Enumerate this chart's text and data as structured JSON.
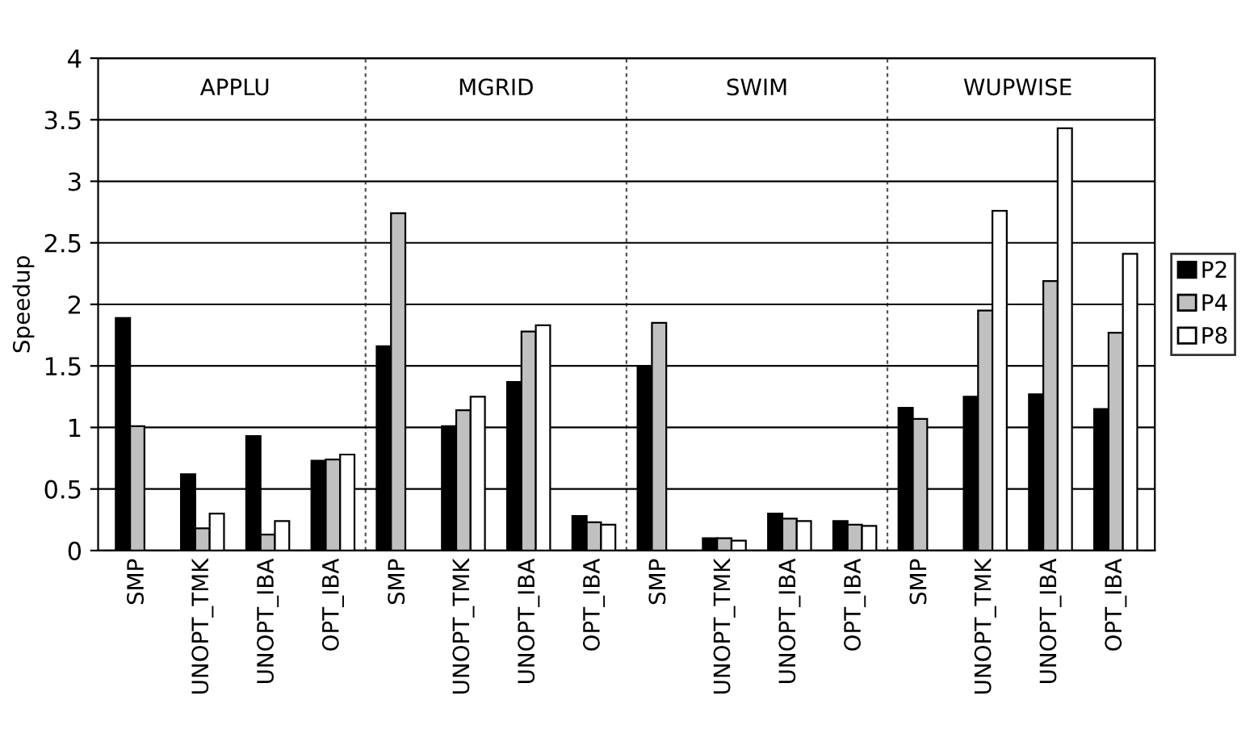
{
  "chart_data": {
    "type": "bar",
    "ylabel": "Speedup",
    "categories": [
      "SMP",
      "UNOPT_TMK",
      "UNOPT_IBA",
      "OPT_IBA",
      "SMP",
      "UNOPT_TMK",
      "UNOPT_IBA",
      "OPT_IBA",
      "SMP",
      "UNOPT_TMK",
      "UNOPT_IBA",
      "OPT_IBA",
      "SMP",
      "UNOPT_TMK",
      "UNOPT_IBA",
      "OPT_IBA"
    ],
    "series": [
      {
        "name": "P2",
        "color": "#000000",
        "values": [
          1.89,
          0.62,
          0.93,
          0.73,
          1.66,
          1.01,
          1.37,
          0.28,
          1.49,
          0.1,
          0.3,
          0.24,
          1.16,
          1.25,
          1.27,
          1.15
        ]
      },
      {
        "name": "P4",
        "color": "#c0c0c0",
        "values": [
          1.01,
          0.18,
          0.13,
          0.74,
          2.74,
          1.14,
          1.78,
          0.23,
          1.85,
          0.1,
          0.26,
          0.21,
          1.07,
          1.95,
          2.19,
          1.77
        ]
      },
      {
        "name": "P8",
        "color": "#ffffff",
        "values": [
          null,
          0.3,
          0.24,
          0.78,
          null,
          1.25,
          1.83,
          0.21,
          null,
          0.08,
          0.24,
          0.2,
          null,
          2.76,
          3.43,
          2.41
        ]
      }
    ],
    "annotations": [
      "APPLU",
      "MGRID",
      "SWIM",
      "WUPWISE"
    ],
    "ylim": [
      0,
      4
    ],
    "yticks": [
      0,
      0.5,
      1,
      1.5,
      2,
      2.5,
      3,
      3.5,
      4
    ],
    "grid": "y",
    "legend": "right"
  }
}
